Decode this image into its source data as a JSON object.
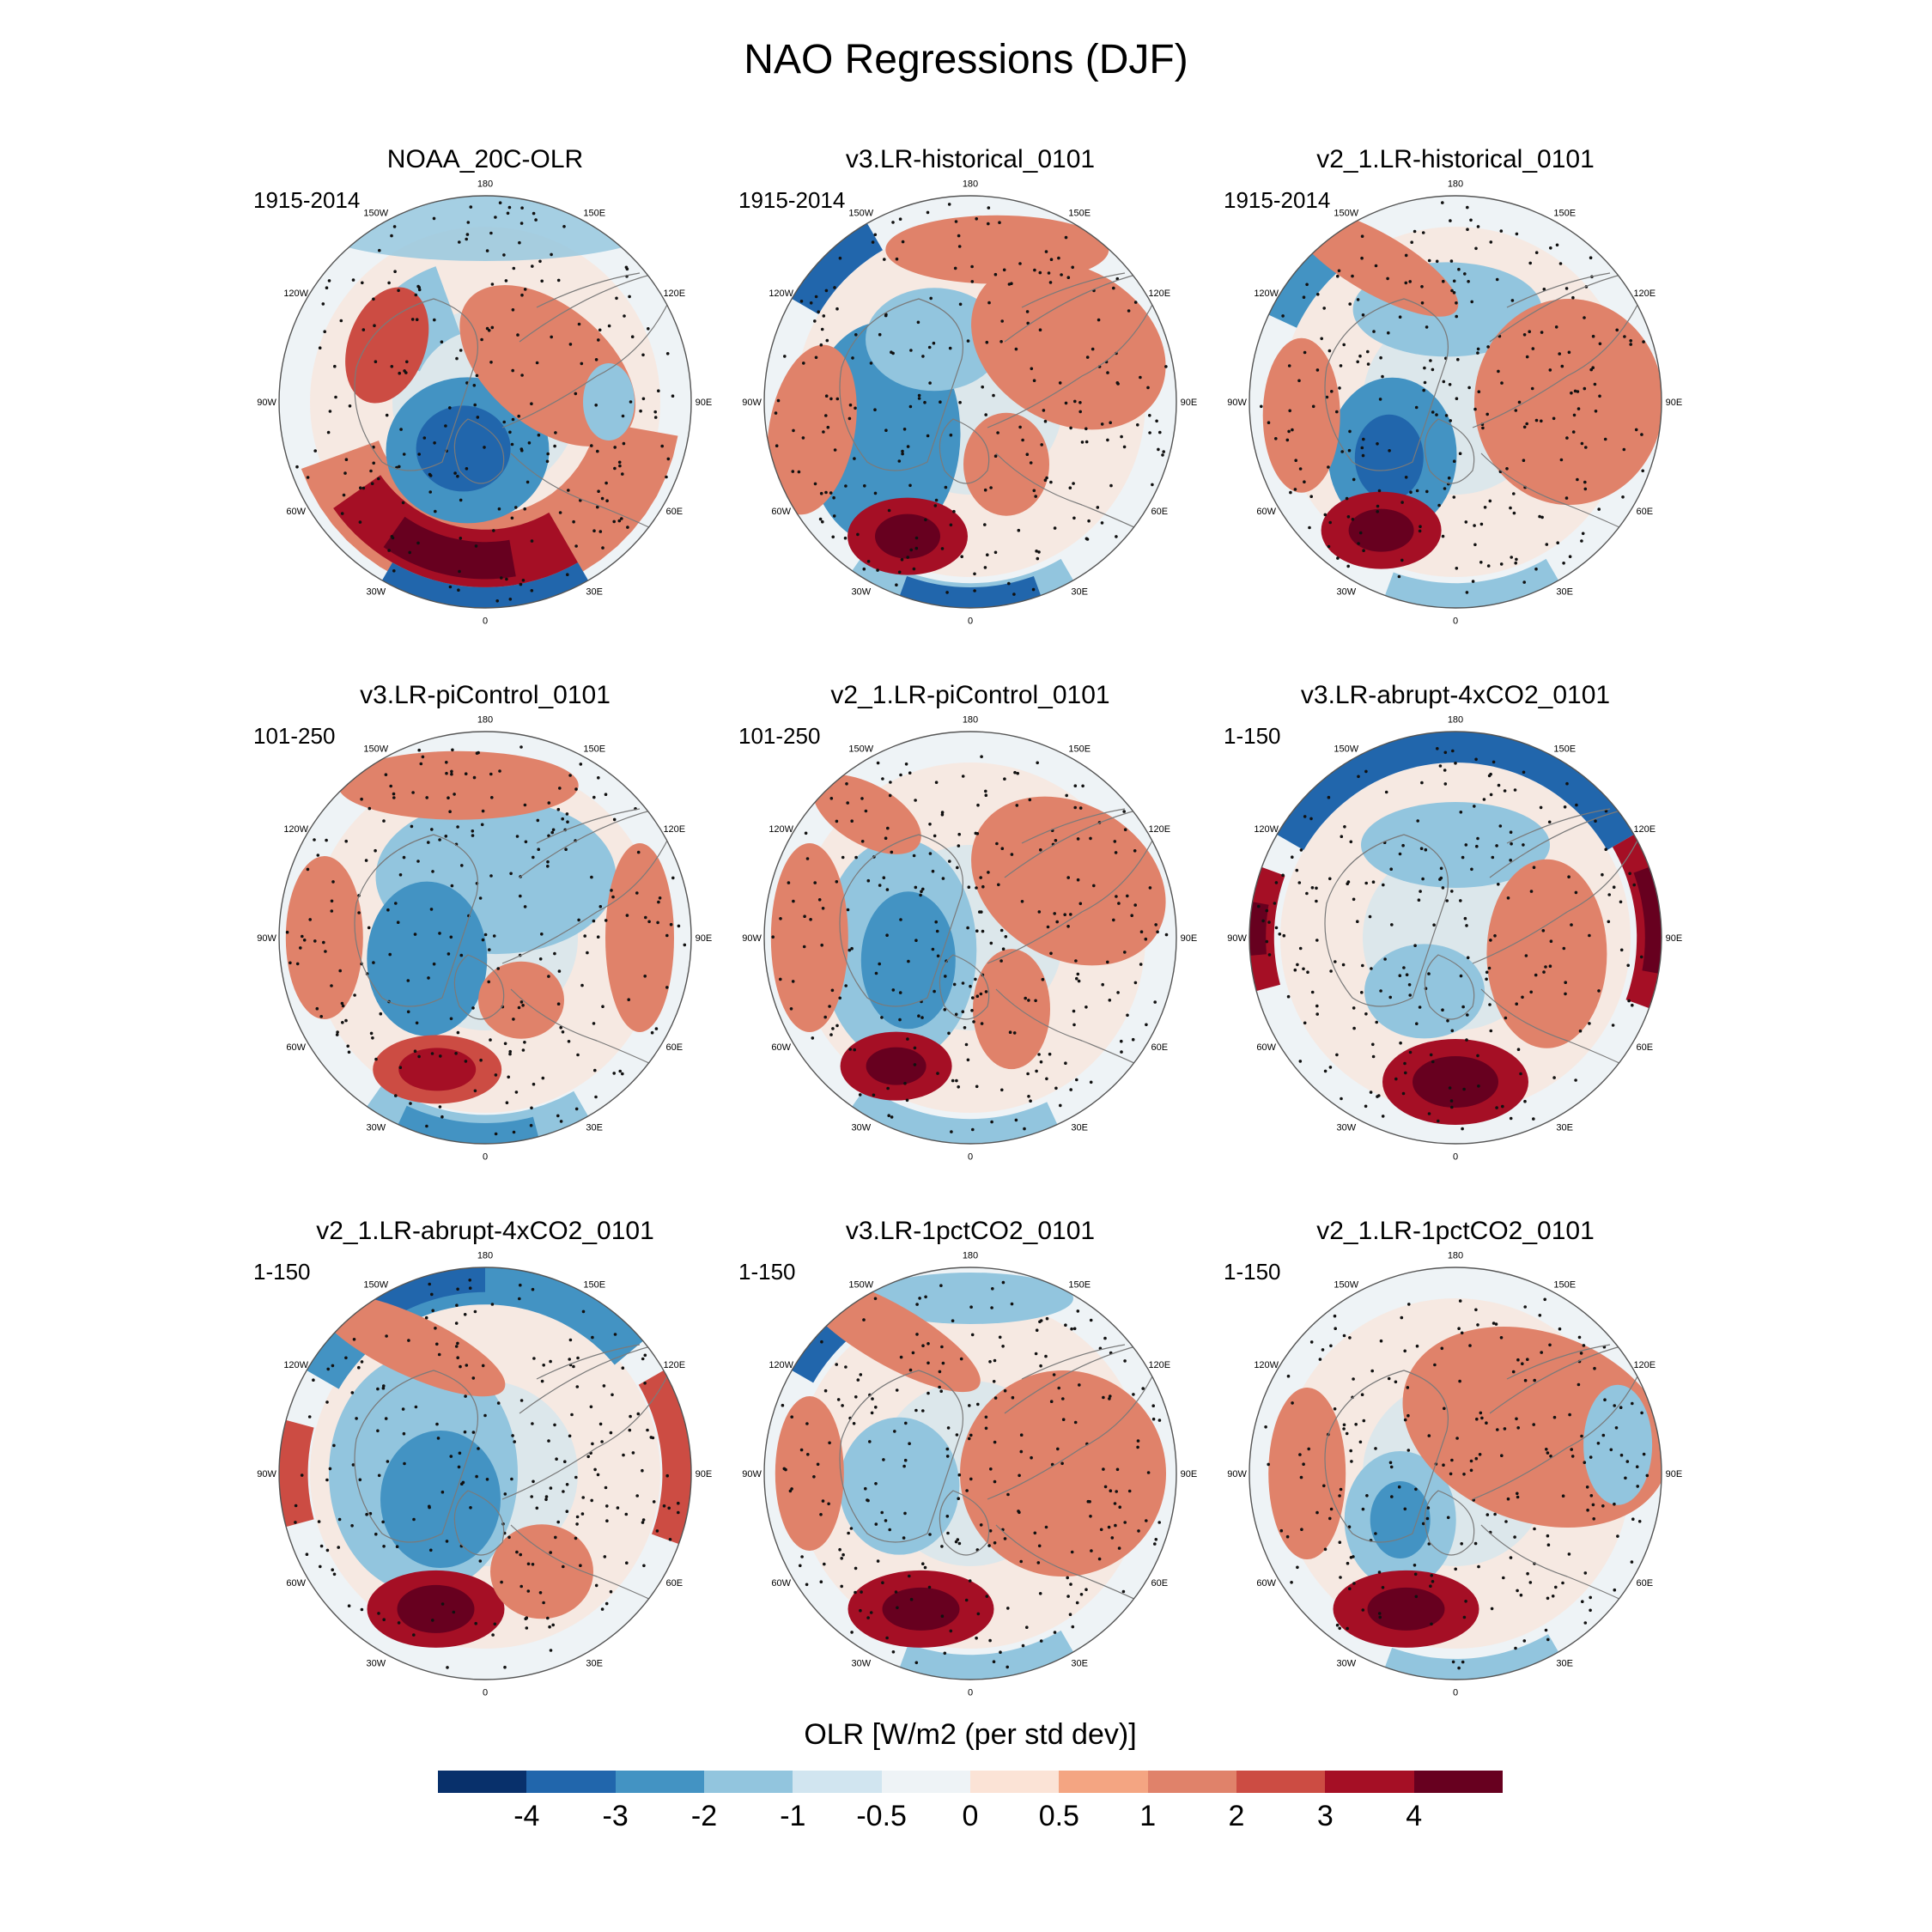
{
  "title": "NAO Regressions (DJF)",
  "colorbar": {
    "title": "OLR [W/m2 (per std dev)]",
    "levels": [
      "-4",
      "-3",
      "-2",
      "-1",
      "-0.5",
      "0",
      "0.5",
      "1",
      "2",
      "3",
      "4"
    ],
    "colors": [
      "#08306b",
      "#2166ac",
      "#4393c3",
      "#92c5de",
      "#d1e5f0",
      "#eef3f6",
      "#fbe3d6",
      "#f4a582",
      "#e0826a",
      "#cc4c43",
      "#a50f25",
      "#67001f"
    ]
  },
  "lon_labels": [
    "180",
    "150E",
    "120E",
    "90E",
    "60E",
    "30E",
    "0",
    "30W",
    "60W",
    "90W",
    "120W",
    "150W"
  ],
  "panels": [
    {
      "title": "NOAA_20C-OLR",
      "period": "1915-2014"
    },
    {
      "title": "v3.LR-historical_0101",
      "period": "1915-2014"
    },
    {
      "title": "v2_1.LR-historical_0101",
      "period": "1915-2014"
    },
    {
      "title": "v3.LR-piControl_0101",
      "period": "101-250"
    },
    {
      "title": "v2_1.LR-piControl_0101",
      "period": "101-250"
    },
    {
      "title": "v3.LR-abrupt-4xCO2_0101",
      "period": "1-150"
    },
    {
      "title": "v2_1.LR-abrupt-4xCO2_0101",
      "period": "1-150"
    },
    {
      "title": "v3.LR-1pctCO2_0101",
      "period": "1-150"
    },
    {
      "title": "v2_1.LR-1pctCO2_0101",
      "period": "1-150"
    }
  ]
}
